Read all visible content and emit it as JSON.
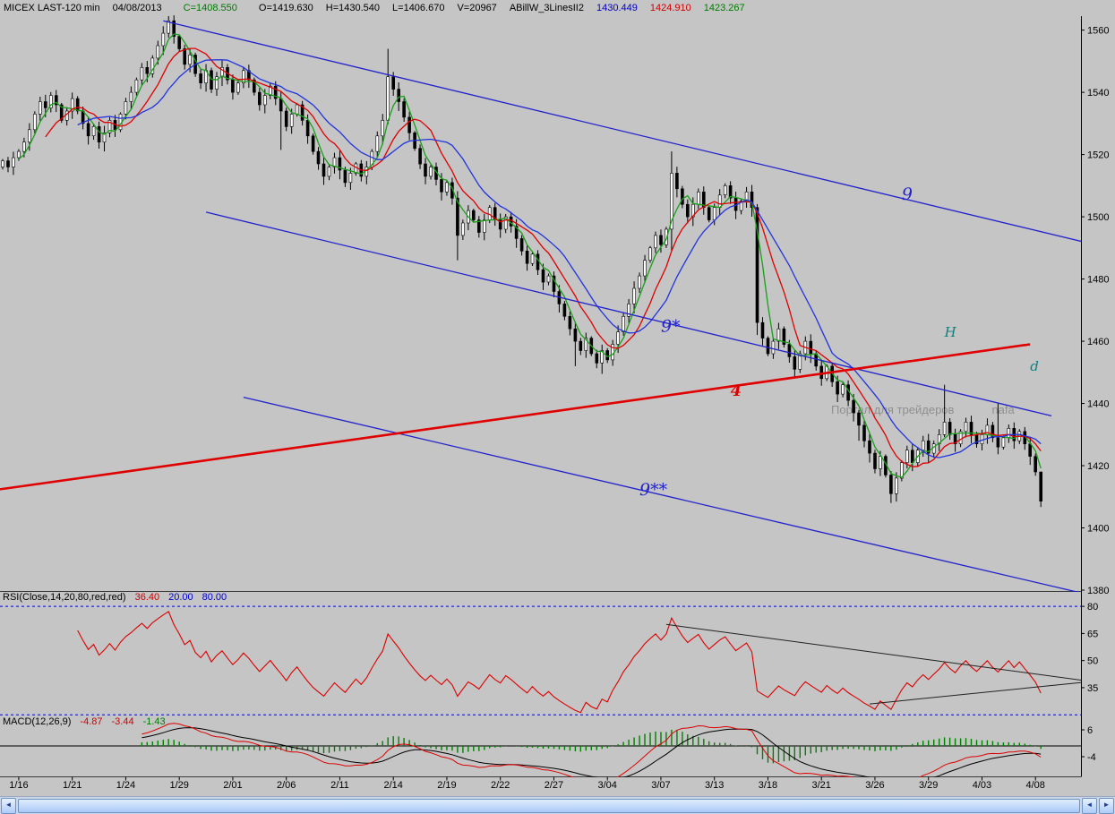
{
  "header": {
    "symbol": "MICEX LAST-120 min",
    "date": "04/08/2013",
    "close": "C=1408.550",
    "open": "O=1419.630",
    "high": "H=1430.540",
    "low": "L=1406.670",
    "volume": "V=20967",
    "study": "ABillW_3LinesII2",
    "ma_slow": "1430.449",
    "ma_mid": "1424.910",
    "ma_fast": "1423.267"
  },
  "rsi_header": {
    "label": "RSI(Close,14,20,80,red,red)",
    "value": "36.40",
    "level_low": "20.00",
    "level_high": "80.00"
  },
  "macd_header": {
    "label": "MACD(12,26,9)",
    "macd": "-4.87",
    "signal": "-3.44",
    "hist": "-1.43"
  },
  "watermark": {
    "left": "Портал для трейдеров",
    "right": "nafa"
  },
  "icons": {
    "scroll_left": "◄",
    "scroll_right": "►"
  },
  "colors": {
    "background": "#c5c5c5",
    "candle": "#000000",
    "ma_fast": "#18a018",
    "ma_mid": "#e00000",
    "ma_slow": "#2233dd",
    "trend_blue": "#2222cc",
    "trend_red": "#e00000",
    "teal_label": "#0e8080",
    "rsi_line": "#dd0000",
    "rsi_level": "#0000cc",
    "macd_line": "#dd0000",
    "macd_signal": "#000000",
    "macd_hist": "#008000"
  },
  "chart_data": [
    {
      "type": "candlestick",
      "title": "MICEX LAST-120 min",
      "interval": "120 min",
      "ylim": [
        1380,
        1564.5
      ],
      "yticks": [
        1560,
        1540,
        1520,
        1500,
        1480,
        1460,
        1440,
        1420,
        1400,
        1380
      ],
      "x_slots": 202,
      "last_bar": {
        "date": "04/08/2013",
        "open": 1419.63,
        "high": 1430.54,
        "low": 1406.67,
        "close": 1408.55,
        "volume": 20967
      },
      "closes": [
        1518,
        1516,
        1519,
        1521,
        1524,
        1528,
        1533,
        1537,
        1535,
        1539,
        1536,
        1531,
        1534,
        1538,
        1534,
        1530,
        1526,
        1529,
        1524,
        1527,
        1531,
        1528,
        1533,
        1537,
        1540,
        1544,
        1548,
        1546,
        1551,
        1555,
        1559,
        1563,
        1558,
        1554,
        1549,
        1552,
        1546,
        1543,
        1547,
        1541,
        1545,
        1548,
        1544,
        1540,
        1543,
        1547,
        1544,
        1540,
        1536,
        1539,
        1542,
        1538,
        1534,
        1529,
        1533,
        1536,
        1531,
        1526,
        1521,
        1517,
        1513,
        1516,
        1519,
        1515,
        1511,
        1514,
        1517,
        1513,
        1516,
        1521,
        1526,
        1531,
        1545,
        1541,
        1537,
        1532,
        1527,
        1522,
        1517,
        1513,
        1516,
        1512,
        1508,
        1511,
        1506,
        1494,
        1498,
        1502,
        1499,
        1495,
        1499,
        1503,
        1499,
        1496,
        1500,
        1497,
        1493,
        1489,
        1485,
        1488,
        1483,
        1479,
        1481,
        1476,
        1472,
        1468,
        1464,
        1460,
        1457,
        1461,
        1456,
        1453,
        1457,
        1454,
        1459,
        1463,
        1468,
        1472,
        1477,
        1481,
        1486,
        1490,
        1494,
        1491,
        1496,
        1514,
        1509,
        1504,
        1500,
        1504,
        1508,
        1503,
        1499,
        1503,
        1507,
        1510,
        1506,
        1502,
        1505,
        1508,
        1503,
        1466,
        1461,
        1456,
        1460,
        1464,
        1459,
        1455,
        1451,
        1456,
        1460,
        1456,
        1452,
        1448,
        1452,
        1447,
        1443,
        1446,
        1441,
        1437,
        1433,
        1428,
        1424,
        1419,
        1423,
        1417,
        1411,
        1416,
        1421,
        1425,
        1421,
        1425,
        1428,
        1424,
        1427,
        1430,
        1434,
        1430,
        1427,
        1431,
        1434,
        1430,
        1427,
        1430,
        1433,
        1429,
        1426,
        1429,
        1432,
        1428,
        1431,
        1427,
        1423,
        1418,
        1408.6
      ],
      "extremes": [
        {
          "bar": 31,
          "high": 1564.5
        },
        {
          "bar": 52,
          "low": 1521.5
        },
        {
          "bar": 72,
          "high": 1554
        },
        {
          "bar": 85,
          "low": 1486
        },
        {
          "bar": 107,
          "low": 1452
        },
        {
          "bar": 112,
          "low": 1449.5
        },
        {
          "bar": 125,
          "high": 1521,
          "low": 1489
        },
        {
          "bar": 141,
          "low": 1462
        },
        {
          "bar": 160,
          "low": 1428
        },
        {
          "bar": 166,
          "low": 1408
        },
        {
          "bar": 176,
          "high": 1446
        },
        {
          "bar": 186,
          "high": 1440
        },
        {
          "bar": 194,
          "high": 1416,
          "low": 1406.7
        }
      ],
      "ma": [
        {
          "name": "fast",
          "period": 4,
          "color": "#18a018",
          "last": 1423.267
        },
        {
          "name": "mid",
          "period": 9,
          "color": "#e00000",
          "last": 1424.91
        },
        {
          "name": "slow",
          "period": 15,
          "color": "#2233dd",
          "last": 1430.449
        }
      ],
      "trendlines": [
        {
          "id": "channel-9",
          "color": "#2222cc",
          "width": 1.3,
          "x1": 30,
          "y1": 1563,
          "x2": 203,
          "y2": 1491.5
        },
        {
          "id": "channel-9-star",
          "color": "#2222cc",
          "width": 1.3,
          "x1": 38,
          "y1": 1501.5,
          "x2": 196,
          "y2": 1436
        },
        {
          "id": "channel-9-dstar",
          "color": "#2222cc",
          "width": 1.3,
          "x1": 45,
          "y1": 1442,
          "x2": 203,
          "y2": 1378.5
        },
        {
          "id": "support-4",
          "color": "#e00000",
          "width": 2.6,
          "x1": -0.5,
          "y1": 1412.4,
          "x2": 192,
          "y2": 1459
        }
      ],
      "annotations": [
        {
          "name": "wave-9",
          "text": "9",
          "bar": 168,
          "price": 1505.5,
          "color": "#2222cc",
          "size": 19,
          "bold": false
        },
        {
          "name": "wave-9-star",
          "text": "9*",
          "bar": 123,
          "price": 1463,
          "color": "#2222cc",
          "size": 19,
          "bold": false
        },
        {
          "name": "wave-9-dstar",
          "text": "9**",
          "bar": 119,
          "price": 1410.5,
          "color": "#2222cc",
          "size": 19,
          "bold": false
        },
        {
          "name": "wave-4",
          "text": "4",
          "bar": 136,
          "price": 1442.5,
          "color": "#e00000",
          "size": 18,
          "bold": true
        },
        {
          "name": "point-H",
          "text": "H",
          "bar": 176,
          "price": 1461.5,
          "color": "#0e8080",
          "size": 15,
          "bold": false
        },
        {
          "name": "point-d",
          "text": "d",
          "bar": 192,
          "price": 1450.5,
          "color": "#0e8080",
          "size": 15,
          "bold": false
        }
      ],
      "xtick_bars": [
        3,
        13,
        23,
        33,
        43,
        53,
        63,
        73,
        83,
        93,
        103,
        113,
        123,
        133,
        143,
        153,
        163,
        173,
        183,
        193
      ],
      "xtick_labels": [
        "1/16",
        "1/21",
        "1/24",
        "1/29",
        "2/01",
        "2/06",
        "2/11",
        "2/14",
        "2/19",
        "2/22",
        "2/27",
        "3/04",
        "3/07",
        "3/13",
        "3/18",
        "3/21",
        "3/26",
        "3/29",
        "4/03",
        "4/08"
      ]
    },
    {
      "type": "line",
      "name": "RSI",
      "params": "RSI(Close,14,20,80,red,red)",
      "period": 14,
      "last_value": 36.4,
      "levels": [
        80,
        20
      ],
      "ylim": [
        20.1,
        87.5
      ],
      "yticks": [
        80,
        65,
        50,
        35
      ],
      "color": "#dd0000",
      "trendlines": [
        {
          "id": "rsi-upper-wedge",
          "x1": 124,
          "y1": 70,
          "x2": 202,
          "y2": 39
        },
        {
          "id": "rsi-lower-wedge",
          "x1": 162,
          "y1": 26,
          "x2": 202,
          "y2": 38
        }
      ],
      "derived_from": "closes of chart 0, Wilder RSI period 14"
    },
    {
      "type": "line+histogram",
      "name": "MACD",
      "params": "MACD(12,26,9)",
      "last_values": {
        "macd": -4.87,
        "signal": -3.44,
        "hist": -1.43
      },
      "ylim": [
        -11,
        11
      ],
      "yticks": [
        6,
        -4
      ],
      "colors": {
        "macd": "#dd0000",
        "signal": "#000000",
        "hist": "#008000"
      },
      "derived_from": "closes of chart 0, EMA 12/26 minus, signal EMA 9"
    }
  ]
}
